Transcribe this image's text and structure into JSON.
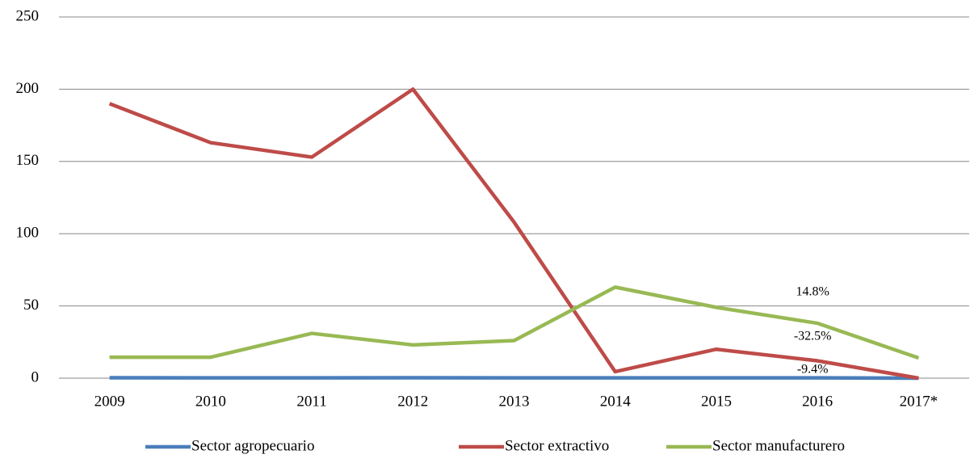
{
  "chart_data": {
    "type": "line",
    "categories": [
      "2009",
      "2010",
      "2011",
      "2012",
      "2013",
      "2014",
      "2015",
      "2016",
      "2017*"
    ],
    "series": [
      {
        "name": "Sector agropecuario",
        "color": "#4a7ebb",
        "values": [
          0.3,
          0.2,
          0.2,
          0.3,
          0.2,
          0.2,
          0.2,
          0.2,
          0
        ]
      },
      {
        "name": "Sector extractivo",
        "color": "#be4b48",
        "values": [
          190,
          163,
          153,
          200,
          108,
          4.5,
          20,
          12,
          0
        ]
      },
      {
        "name": "Sector manufacturero",
        "color": "#98b954",
        "values": [
          14.5,
          14.5,
          31,
          23,
          26,
          63,
          49,
          38,
          14
        ]
      }
    ],
    "annotations": [
      "14.8%",
      "-32.5%",
      "-9.4%"
    ],
    "ylim": [
      0,
      250
    ],
    "yticks": [
      0,
      50,
      100,
      150,
      200,
      250
    ],
    "grid": true,
    "legend": "bottom"
  }
}
